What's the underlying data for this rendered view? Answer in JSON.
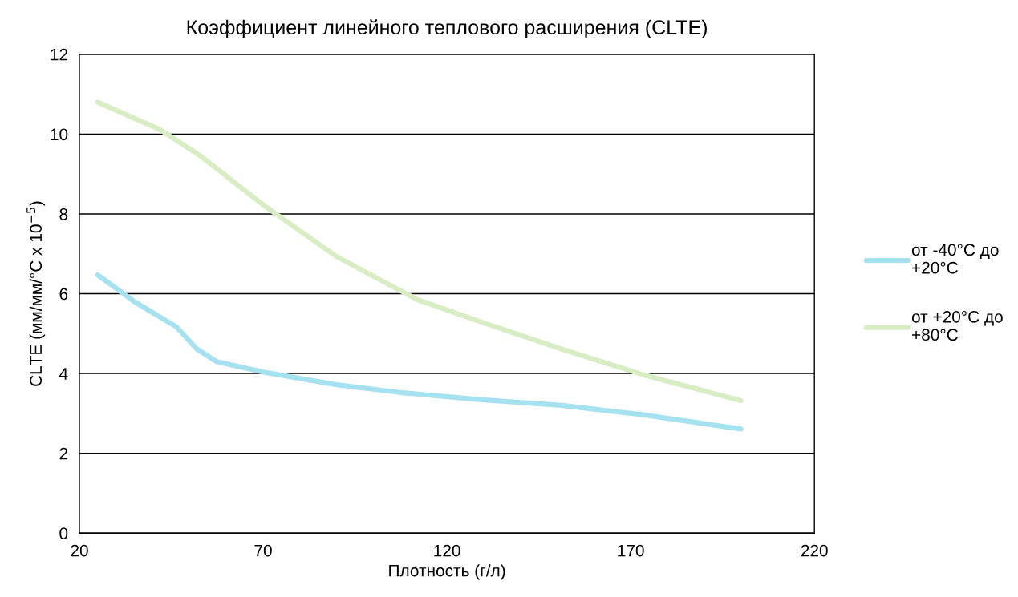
{
  "chart_data": {
    "type": "line",
    "title": "Коэффициент линейного теплового расширения (CLTE)",
    "xlabel": "Плотность (г/л)",
    "ylabel": "CLTE (мм/мм/°C x 10$^{−5}$)",
    "xlim": [
      20,
      220
    ],
    "xticks": [
      20,
      70,
      120,
      170,
      220
    ],
    "ylim": [
      0,
      12
    ],
    "yticks": [
      0,
      2,
      4,
      6,
      8,
      10,
      12
    ],
    "grid": "y",
    "legend": "right",
    "line_style": "solid",
    "marker": "none",
    "series": [
      {
        "name": "от -40°C до\n+20°C",
        "color": "#a6e1f0",
        "x": [
          25,
          35,
          46.4,
          51.9,
          57.3,
          70.4,
          90,
          107.6,
          129.4,
          151.2,
          173,
          200
        ],
        "values": [
          6.47,
          5.8,
          5.17,
          4.62,
          4.3,
          4.03,
          3.72,
          3.52,
          3.34,
          3.2,
          2.97,
          2.61
        ]
      },
      {
        "name": "от +20°C до\n+80°C",
        "color": "#d9edc4",
        "x": [
          25,
          42,
          53,
          70.4,
          90,
          112,
          129.4,
          151,
          173,
          200
        ],
        "values": [
          10.8,
          10.11,
          9.45,
          8.2,
          6.93,
          5.85,
          5.29,
          4.62,
          3.98,
          3.32
        ]
      }
    ]
  }
}
